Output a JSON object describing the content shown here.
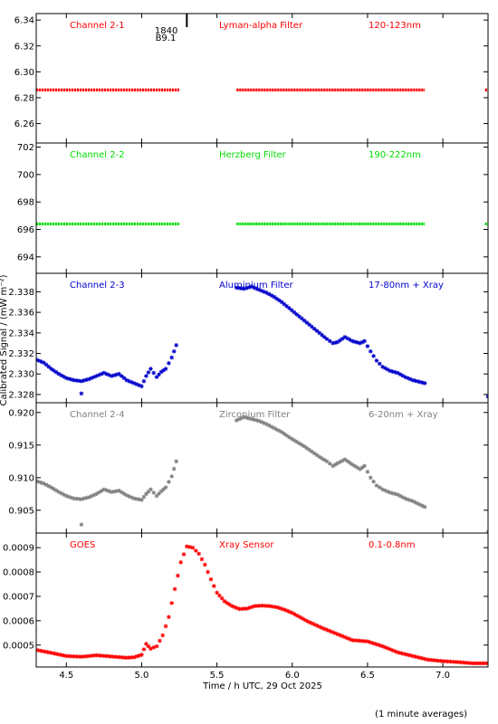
{
  "ylabel": "Calibrated Signal / (mW m⁻²)",
  "xlabel": "Time / h UTC, 29 Oct 2025",
  "footnote": "(1 minute averages)",
  "xlim": [
    4.3,
    7.3
  ],
  "xticks": [
    4.5,
    5.0,
    5.5,
    6.0,
    6.5,
    7.0
  ],
  "xtick_labels": [
    "4.5",
    "5.0",
    "5.5",
    "6.0",
    "6.5",
    "7.0"
  ],
  "flare_marker": {
    "x": 5.3,
    "time_label": "1840",
    "class_label": "B9.1"
  },
  "chart_data": [
    {
      "type": "scatter",
      "channel": "Channel 2-1",
      "filter": "Lyman-alpha Filter",
      "band": "120-123nm",
      "color": "#ff0000",
      "ylim": [
        6.245,
        6.345
      ],
      "yticks": [
        6.26,
        6.28,
        6.3,
        6.32,
        6.34
      ],
      "ytick_labels": [
        "6.26",
        "6.28",
        "6.30",
        "6.32",
        "6.34"
      ],
      "segments": [
        {
          "x": [
            4.3,
            5.25
          ],
          "y": [
            6.286,
            6.286
          ]
        },
        {
          "x": [
            5.63,
            6.88
          ],
          "y": [
            6.286,
            6.286
          ]
        },
        {
          "x": [
            7.28,
            7.3
          ],
          "y": [
            6.286,
            6.286
          ]
        }
      ]
    },
    {
      "type": "scatter",
      "channel": "Channel 2-2",
      "filter": "Herzberg Filter",
      "band": "190-222nm",
      "color": "#00dd00",
      "ylim": [
        692.8,
        702.3
      ],
      "yticks": [
        694,
        696,
        698,
        700,
        702
      ],
      "ytick_labels": [
        "694",
        "696",
        "698",
        "700",
        "702"
      ],
      "segments": [
        {
          "x": [
            4.3,
            5.25
          ],
          "y": [
            696.4,
            696.4
          ]
        },
        {
          "x": [
            5.63,
            6.88
          ],
          "y": [
            696.4,
            696.4
          ]
        },
        {
          "x": [
            7.28,
            7.3
          ],
          "y": [
            696.4,
            696.4
          ]
        }
      ]
    },
    {
      "type": "scatter",
      "channel": "Channel 2-3",
      "filter": "Aluminium Filter",
      "band": "17-80nm + Xray",
      "color": "#0000cc",
      "ylim": [
        2.3272,
        2.3398
      ],
      "yticks": [
        2.328,
        2.33,
        2.332,
        2.334,
        2.336,
        2.338
      ],
      "ytick_labels": [
        "2.328",
        "2.330",
        "2.332",
        "2.334",
        "2.336",
        "2.338"
      ],
      "x": [
        4.3,
        4.35,
        4.4,
        4.45,
        4.5,
        4.55,
        4.6,
        4.65,
        4.7,
        4.75,
        4.8,
        4.85,
        4.9,
        4.95,
        5.0,
        5.03,
        5.06,
        5.1,
        5.13,
        5.16,
        5.2,
        5.23,
        5.25,
        5.63,
        5.68,
        5.73,
        5.78,
        5.83,
        5.88,
        5.93,
        5.98,
        6.03,
        6.08,
        6.13,
        6.18,
        6.23,
        6.27,
        6.3,
        6.35,
        6.4,
        6.45,
        6.48,
        6.52,
        6.56,
        6.6,
        6.65,
        6.7,
        6.75,
        6.8,
        6.88
      ],
      "y": [
        2.3314,
        2.3311,
        2.3305,
        2.33,
        2.3296,
        2.3294,
        2.3293,
        2.3295,
        2.3298,
        2.3301,
        2.3298,
        2.33,
        2.3294,
        2.3291,
        2.3288,
        2.3298,
        2.3305,
        2.3297,
        2.3302,
        2.3305,
        2.3316,
        2.3328,
        2.3337,
        2.3384,
        2.3383,
        2.3385,
        2.3382,
        2.3379,
        2.3375,
        2.337,
        2.3364,
        2.3358,
        2.3352,
        2.3346,
        2.334,
        2.3334,
        2.333,
        2.3331,
        2.3336,
        2.3332,
        2.333,
        2.3332,
        2.3322,
        2.3313,
        2.3307,
        2.3303,
        2.3301,
        2.3297,
        2.3294,
        2.3291
      ],
      "outliers": [
        {
          "x": 4.6,
          "y": 2.3281
        },
        {
          "x": 7.3,
          "y": 2.3278
        }
      ]
    },
    {
      "type": "scatter",
      "channel": "Channel 2-4",
      "filter": "Zirconium Filter",
      "band": "6-20nm + Xray",
      "color": "#808080",
      "ylim": [
        0.9015,
        0.9215
      ],
      "yticks": [
        0.905,
        0.91,
        0.915,
        0.92
      ],
      "ytick_labels": [
        "0.905",
        "0.910",
        "0.915",
        "0.920"
      ],
      "x": [
        4.3,
        4.35,
        4.4,
        4.45,
        4.5,
        4.55,
        4.6,
        4.65,
        4.7,
        4.75,
        4.8,
        4.85,
        4.9,
        4.95,
        5.0,
        5.03,
        5.06,
        5.1,
        5.13,
        5.16,
        5.2,
        5.23,
        5.25,
        5.63,
        5.68,
        5.73,
        5.78,
        5.83,
        5.88,
        5.93,
        5.98,
        6.03,
        6.08,
        6.13,
        6.18,
        6.23,
        6.27,
        6.3,
        6.35,
        6.4,
        6.45,
        6.48,
        6.52,
        6.56,
        6.6,
        6.65,
        6.7,
        6.75,
        6.8,
        6.88
      ],
      "y": [
        0.9095,
        0.9091,
        0.9085,
        0.9078,
        0.9072,
        0.9068,
        0.9067,
        0.907,
        0.9075,
        0.9082,
        0.9078,
        0.908,
        0.9073,
        0.9068,
        0.9066,
        0.9075,
        0.9082,
        0.9072,
        0.9079,
        0.9085,
        0.9102,
        0.9125,
        0.9145,
        0.9188,
        0.9193,
        0.919,
        0.9187,
        0.9182,
        0.9176,
        0.917,
        0.9162,
        0.9155,
        0.9148,
        0.914,
        0.9132,
        0.9125,
        0.9118,
        0.9122,
        0.9128,
        0.912,
        0.9113,
        0.9118,
        0.91,
        0.9088,
        0.9082,
        0.9077,
        0.9074,
        0.9068,
        0.9064,
        0.9055
      ],
      "outliers": [
        {
          "x": 4.6,
          "y": 0.9028
        },
        {
          "x": 7.3,
          "y": 0.9017
        }
      ]
    },
    {
      "type": "scatter",
      "channel": "GOES",
      "filter": "Xray Sensor",
      "band": "0.1-0.8nm",
      "color": "#ff0000",
      "ylim": [
        0.00041,
        0.00096
      ],
      "yticks": [
        0.0005,
        0.0006,
        0.0007,
        0.0008,
        0.0009
      ],
      "ytick_labels": [
        "0.0005",
        "0.0006",
        "0.0007",
        "0.0008",
        "0.0009"
      ],
      "x": [
        4.3,
        4.4,
        4.5,
        4.6,
        4.7,
        4.8,
        4.9,
        4.95,
        5.0,
        5.03,
        5.06,
        5.1,
        5.14,
        5.18,
        5.22,
        5.26,
        5.3,
        5.34,
        5.38,
        5.42,
        5.46,
        5.5,
        5.55,
        5.6,
        5.65,
        5.7,
        5.75,
        5.8,
        5.85,
        5.9,
        5.95,
        6.0,
        6.1,
        6.2,
        6.3,
        6.4,
        6.5,
        6.6,
        6.7,
        6.8,
        6.9,
        7.0,
        7.1,
        7.2,
        7.3
      ],
      "y": [
        0.00048,
        0.000468,
        0.000455,
        0.000452,
        0.000458,
        0.000453,
        0.000448,
        0.00045,
        0.00046,
        0.000505,
        0.000485,
        0.000495,
        0.00054,
        0.000615,
        0.00073,
        0.00084,
        0.000905,
        0.0009,
        0.000875,
        0.00083,
        0.00077,
        0.000715,
        0.00068,
        0.00066,
        0.000648,
        0.00065,
        0.00066,
        0.000662,
        0.00066,
        0.000655,
        0.000645,
        0.000632,
        0.000598,
        0.00057,
        0.000545,
        0.00052,
        0.000515,
        0.000495,
        0.00047,
        0.000455,
        0.00044,
        0.000434,
        0.00043,
        0.000425,
        0.000425
      ]
    }
  ]
}
